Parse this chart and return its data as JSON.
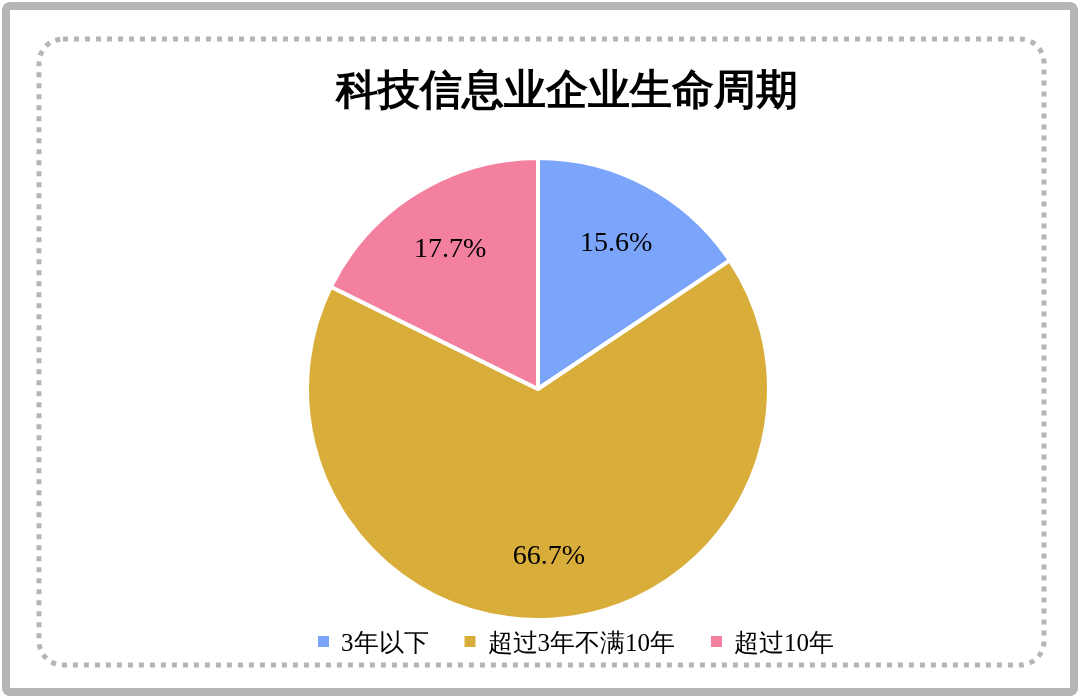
{
  "chart_data": {
    "type": "pie",
    "title": "科技信息业企业生命周期",
    "categories": [
      "3年以下",
      "超过3年不满10年",
      "超过10年"
    ],
    "values": [
      15.6,
      66.7,
      17.7
    ],
    "colors": [
      "#7ba4fb",
      "#d9ad3a",
      "#f3809f"
    ],
    "value_labels": [
      "15.6%",
      "66.7%",
      "17.7%"
    ],
    "legend": "bottom"
  }
}
